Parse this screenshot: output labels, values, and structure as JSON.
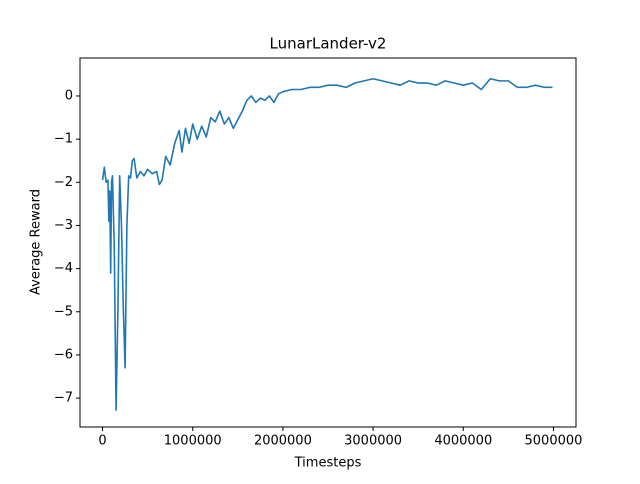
{
  "chart_data": {
    "type": "line",
    "title": "LunarLander-v2",
    "x_label": "Timesteps",
    "y_label": "Average Reward",
    "color": "#1f77b4",
    "x": [
      0,
      20000,
      40000,
      60000,
      70000,
      80000,
      90000,
      100000,
      110000,
      130000,
      150000,
      170000,
      190000,
      210000,
      230000,
      250000,
      270000,
      290000,
      310000,
      330000,
      350000,
      380000,
      420000,
      460000,
      500000,
      550000,
      600000,
      630000,
      660000,
      700000,
      750000,
      800000,
      850000,
      880000,
      920000,
      960000,
      1000000,
      1050000,
      1100000,
      1150000,
      1200000,
      1250000,
      1300000,
      1350000,
      1400000,
      1450000,
      1500000,
      1550000,
      1600000,
      1650000,
      1700000,
      1750000,
      1800000,
      1850000,
      1900000,
      1950000,
      2000000,
      2100000,
      2200000,
      2300000,
      2400000,
      2500000,
      2600000,
      2700000,
      2800000,
      2900000,
      3000000,
      3100000,
      3200000,
      3300000,
      3400000,
      3500000,
      3600000,
      3700000,
      3800000,
      3900000,
      4000000,
      4100000,
      4200000,
      4300000,
      4400000,
      4500000,
      4600000,
      4700000,
      4800000,
      4900000,
      4990000
    ],
    "values": [
      -1.95,
      -1.65,
      -2.0,
      -1.95,
      -2.9,
      -2.2,
      -4.1,
      -2.0,
      -1.85,
      -3.5,
      -7.28,
      -5.0,
      -1.85,
      -3.0,
      -4.9,
      -6.3,
      -3.0,
      -1.85,
      -1.9,
      -1.5,
      -1.45,
      -1.9,
      -1.75,
      -1.85,
      -1.7,
      -1.8,
      -1.75,
      -2.05,
      -1.95,
      -1.4,
      -1.6,
      -1.1,
      -0.8,
      -1.3,
      -0.75,
      -1.1,
      -0.65,
      -1.0,
      -0.7,
      -0.95,
      -0.5,
      -0.6,
      -0.35,
      -0.65,
      -0.5,
      -0.75,
      -0.55,
      -0.35,
      -0.1,
      0.0,
      -0.15,
      -0.05,
      -0.1,
      0.0,
      -0.15,
      0.05,
      0.1,
      0.15,
      0.15,
      0.2,
      0.2,
      0.25,
      0.25,
      0.2,
      0.3,
      0.35,
      0.4,
      0.35,
      0.3,
      0.25,
      0.35,
      0.3,
      0.3,
      0.25,
      0.35,
      0.3,
      0.25,
      0.3,
      0.15,
      0.4,
      0.35,
      0.35,
      0.2,
      0.2,
      0.25,
      0.2,
      0.2
    ],
    "xlim": [
      -250000,
      5250000
    ],
    "xticks": [
      0,
      1000000,
      2000000,
      3000000,
      4000000,
      5000000
    ],
    "ylim": [
      -7.67,
      0.88
    ],
    "yticks": [
      {
        "value": -7,
        "label": "−7"
      },
      {
        "value": -6,
        "label": "−6"
      },
      {
        "value": -5,
        "label": "−5"
      },
      {
        "value": -4,
        "label": "−4"
      },
      {
        "value": -3,
        "label": "−3"
      },
      {
        "value": -2,
        "label": "−2"
      },
      {
        "value": -1,
        "label": "−1"
      },
      0
    ]
  }
}
